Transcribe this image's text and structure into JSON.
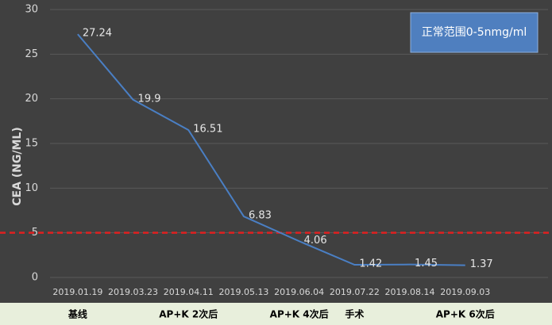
{
  "chart_data": {
    "type": "line",
    "y_label": "CEA (NG/ML)",
    "categories": [
      "2019.01.19",
      "2019.03.23",
      "2019.04.11",
      "2019.05.13",
      "2019.06.04",
      "2019.07.22",
      "2019.08.14",
      "2019.09.03"
    ],
    "phases": [
      "基线",
      null,
      "AP+K 2次后",
      null,
      "AP+K 4次后",
      "手术",
      null,
      "AP+K 6次后"
    ],
    "values": [
      27.24,
      19.9,
      16.51,
      6.83,
      4.06,
      1.42,
      1.45,
      1.37
    ],
    "color": "#4a7fc4",
    "ylim": [
      0,
      30
    ],
    "yticks": [
      0,
      5,
      10,
      15,
      20,
      25,
      30
    ],
    "grid": true,
    "reference_line": {
      "value": 5,
      "color": "#e02020"
    },
    "annotation": "正常范围0-5nmg/ml"
  }
}
